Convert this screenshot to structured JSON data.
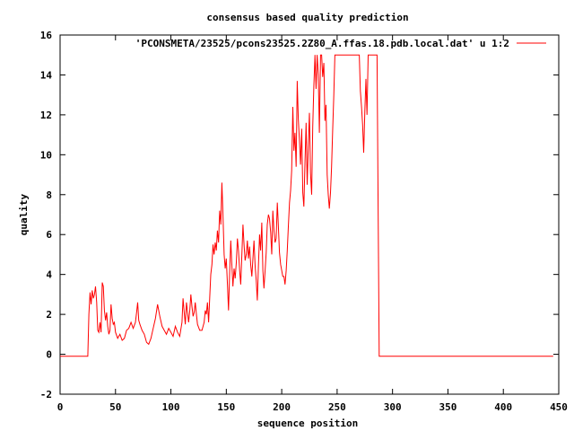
{
  "chart_data": {
    "type": "line",
    "title": "consensus based quality prediction",
    "xlabel": "sequence position",
    "ylabel": "quality",
    "xlim": [
      0,
      450
    ],
    "ylim": [
      -2,
      16
    ],
    "x_ticks": [
      0,
      50,
      100,
      150,
      200,
      250,
      300,
      350,
      400,
      450
    ],
    "y_ticks": [
      -2,
      0,
      2,
      4,
      6,
      8,
      10,
      12,
      14,
      16
    ],
    "legend_position": "top-right",
    "series_color": "#ff0000",
    "series": [
      {
        "name": "'PCONSMETA/23525/pcons23525.2Z80_A.ffas.18.pdb.local.dat' u 1:2",
        "points": [
          [
            0,
            -0.1
          ],
          [
            25,
            -0.1
          ],
          [
            26,
            2.0
          ],
          [
            27,
            3.1
          ],
          [
            28,
            2.5
          ],
          [
            29,
            3.2
          ],
          [
            30,
            2.8
          ],
          [
            31,
            3.0
          ],
          [
            32,
            3.4
          ],
          [
            33,
            2.6
          ],
          [
            34,
            1.2
          ],
          [
            35,
            1.1
          ],
          [
            36,
            1.6
          ],
          [
            37,
            1.1
          ],
          [
            38,
            3.6
          ],
          [
            39,
            3.4
          ],
          [
            40,
            2.2
          ],
          [
            41,
            1.7
          ],
          [
            42,
            2.1
          ],
          [
            43,
            1.4
          ],
          [
            44,
            1.0
          ],
          [
            45,
            1.2
          ],
          [
            46,
            2.5
          ],
          [
            47,
            1.8
          ],
          [
            48,
            1.5
          ],
          [
            49,
            1.6
          ],
          [
            50,
            1.1
          ],
          [
            52,
            0.8
          ],
          [
            54,
            1.0
          ],
          [
            56,
            0.7
          ],
          [
            58,
            0.8
          ],
          [
            60,
            1.2
          ],
          [
            62,
            1.3
          ],
          [
            64,
            1.6
          ],
          [
            66,
            1.3
          ],
          [
            68,
            1.6
          ],
          [
            69,
            2.1
          ],
          [
            70,
            2.6
          ],
          [
            71,
            1.7
          ],
          [
            72,
            1.5
          ],
          [
            74,
            1.2
          ],
          [
            76,
            1.0
          ],
          [
            78,
            0.6
          ],
          [
            80,
            0.5
          ],
          [
            82,
            0.8
          ],
          [
            84,
            1.3
          ],
          [
            86,
            1.8
          ],
          [
            88,
            2.5
          ],
          [
            90,
            1.9
          ],
          [
            92,
            1.4
          ],
          [
            94,
            1.2
          ],
          [
            96,
            1.0
          ],
          [
            98,
            1.3
          ],
          [
            100,
            1.1
          ],
          [
            102,
            0.9
          ],
          [
            104,
            1.4
          ],
          [
            106,
            1.1
          ],
          [
            108,
            0.9
          ],
          [
            110,
            1.6
          ],
          [
            111,
            2.8
          ],
          [
            112,
            2.1
          ],
          [
            113,
            1.5
          ],
          [
            114,
            2.6
          ],
          [
            115,
            2.1
          ],
          [
            116,
            1.6
          ],
          [
            117,
            2.2
          ],
          [
            118,
            3.0
          ],
          [
            119,
            2.4
          ],
          [
            120,
            1.9
          ],
          [
            121,
            2.1
          ],
          [
            122,
            2.6
          ],
          [
            123,
            2.0
          ],
          [
            124,
            1.5
          ],
          [
            126,
            1.2
          ],
          [
            128,
            1.2
          ],
          [
            130,
            1.6
          ],
          [
            131,
            2.2
          ],
          [
            132,
            2.0
          ],
          [
            133,
            2.6
          ],
          [
            134,
            1.6
          ],
          [
            135,
            2.8
          ],
          [
            136,
            4.0
          ],
          [
            137,
            4.5
          ],
          [
            138,
            5.5
          ],
          [
            139,
            5.0
          ],
          [
            140,
            5.6
          ],
          [
            141,
            5.2
          ],
          [
            142,
            6.2
          ],
          [
            143,
            5.6
          ],
          [
            144,
            7.2
          ],
          [
            145,
            6.5
          ],
          [
            146,
            8.6
          ],
          [
            147,
            7.0
          ],
          [
            148,
            5.0
          ],
          [
            149,
            4.3
          ],
          [
            150,
            4.8
          ],
          [
            151,
            3.5
          ],
          [
            152,
            2.2
          ],
          [
            153,
            4.0
          ],
          [
            154,
            5.7
          ],
          [
            155,
            4.5
          ],
          [
            156,
            3.4
          ],
          [
            157,
            4.3
          ],
          [
            158,
            3.8
          ],
          [
            159,
            4.6
          ],
          [
            160,
            5.8
          ],
          [
            161,
            5.2
          ],
          [
            162,
            4.2
          ],
          [
            163,
            3.5
          ],
          [
            164,
            4.9
          ],
          [
            165,
            6.5
          ],
          [
            166,
            5.5
          ],
          [
            167,
            4.7
          ],
          [
            168,
            5.0
          ],
          [
            169,
            5.7
          ],
          [
            170,
            4.8
          ],
          [
            171,
            5.4
          ],
          [
            172,
            4.5
          ],
          [
            173,
            3.9
          ],
          [
            174,
            4.8
          ],
          [
            175,
            5.7
          ],
          [
            176,
            4.4
          ],
          [
            177,
            3.7
          ],
          [
            178,
            2.7
          ],
          [
            179,
            4.5
          ],
          [
            180,
            6.0
          ],
          [
            181,
            5.2
          ],
          [
            182,
            6.6
          ],
          [
            183,
            4.2
          ],
          [
            184,
            3.3
          ],
          [
            185,
            4.2
          ],
          [
            186,
            5.1
          ],
          [
            187,
            6.5
          ],
          [
            188,
            7.0
          ],
          [
            189,
            6.8
          ],
          [
            190,
            6.1
          ],
          [
            191,
            5.0
          ],
          [
            192,
            7.2
          ],
          [
            193,
            6.2
          ],
          [
            194,
            5.6
          ],
          [
            195,
            5.8
          ],
          [
            196,
            7.6
          ],
          [
            197,
            6.4
          ],
          [
            198,
            5.1
          ],
          [
            199,
            4.5
          ],
          [
            200,
            4.2
          ],
          [
            201,
            3.9
          ],
          [
            202,
            3.9
          ],
          [
            203,
            3.5
          ],
          [
            204,
            4.2
          ],
          [
            205,
            5.2
          ],
          [
            206,
            6.4
          ],
          [
            207,
            7.6
          ],
          [
            208,
            8.2
          ],
          [
            209,
            9.2
          ],
          [
            210,
            12.4
          ],
          [
            211,
            10.2
          ],
          [
            212,
            11.1
          ],
          [
            213,
            9.4
          ],
          [
            214,
            13.7
          ],
          [
            215,
            11.8
          ],
          [
            216,
            10.7
          ],
          [
            217,
            9.5
          ],
          [
            218,
            11.3
          ],
          [
            219,
            8.1
          ],
          [
            220,
            7.4
          ],
          [
            221,
            9.7
          ],
          [
            222,
            11.6
          ],
          [
            223,
            8.5
          ],
          [
            224,
            10.5
          ],
          [
            225,
            12.1
          ],
          [
            226,
            9.1
          ],
          [
            227,
            8.0
          ],
          [
            228,
            11.4
          ],
          [
            229,
            13.4
          ],
          [
            230,
            15.0
          ],
          [
            231,
            13.3
          ],
          [
            232,
            15.0
          ],
          [
            233,
            14.0
          ],
          [
            234,
            11.1
          ],
          [
            235,
            15.0
          ],
          [
            236,
            15.0
          ],
          [
            237,
            13.9
          ],
          [
            238,
            14.6
          ],
          [
            239,
            11.7
          ],
          [
            240,
            12.5
          ],
          [
            241,
            9.0
          ],
          [
            242,
            8.0
          ],
          [
            243,
            7.3
          ],
          [
            244,
            8.1
          ],
          [
            245,
            9.4
          ],
          [
            246,
            11.2
          ],
          [
            247,
            13.0
          ],
          [
            248,
            15.0
          ],
          [
            249,
            15.0
          ],
          [
            250,
            15.0
          ],
          [
            260,
            15.0
          ],
          [
            270,
            15.0
          ],
          [
            271,
            13.2
          ],
          [
            272,
            12.4
          ],
          [
            273,
            11.5
          ],
          [
            274,
            10.1
          ],
          [
            275,
            12.2
          ],
          [
            276,
            13.8
          ],
          [
            277,
            12.0
          ],
          [
            278,
            15.0
          ],
          [
            280,
            15.0
          ],
          [
            284,
            15.0
          ],
          [
            286,
            15.0
          ],
          [
            287,
            7.4
          ],
          [
            288,
            -0.1
          ],
          [
            300,
            -0.1
          ],
          [
            350,
            -0.1
          ],
          [
            400,
            -0.1
          ],
          [
            445,
            -0.1
          ]
        ]
      }
    ]
  }
}
